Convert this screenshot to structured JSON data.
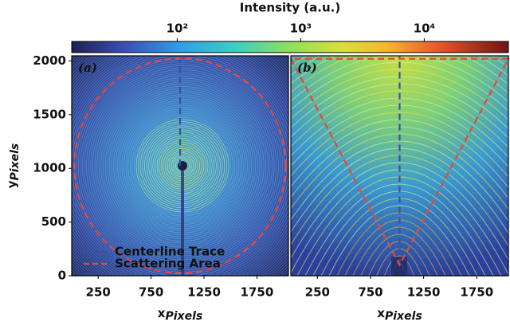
{
  "chart_data": [
    {
      "type": "image",
      "panel_label": "(a)",
      "xlabel": "x",
      "xlabel_sub": "Pixels",
      "ylabel": "y",
      "ylabel_sub": "Pixels",
      "xlim": [
        0,
        2048
      ],
      "ylim": [
        0,
        2048
      ],
      "xticks": [
        250,
        750,
        1250,
        1750
      ],
      "yticks": [
        0,
        500,
        1000,
        1500,
        2000
      ],
      "legend": "lower center",
      "overlays": [
        {
          "name": "Centerline Trace",
          "color": "#3b4fa0",
          "shape": "line",
          "x": [
            1024,
            1024
          ],
          "y": [
            1024,
            2048
          ]
        },
        {
          "name": "Scattering Area",
          "color": "#e8473a",
          "shape": "circle",
          "center": [
            1024,
            1024
          ],
          "radius": 1000
        }
      ]
    },
    {
      "type": "image",
      "panel_label": "(b)",
      "xlabel": "x",
      "xlabel_sub": "Pixels",
      "xlim": [
        0,
        2048
      ],
      "ylim": [
        0,
        2048
      ],
      "xticks": [
        250,
        750,
        1250,
        1750
      ],
      "overlays": [
        {
          "color": "#3b4fa0",
          "shape": "line",
          "x": [
            1024,
            1024
          ],
          "y": [
            100,
            2048
          ]
        },
        {
          "color": "#e8473a",
          "shape": "line",
          "x": [
            0,
            1024,
            2048,
            0
          ],
          "y": [
            2020,
            100,
            2020,
            2020
          ]
        }
      ]
    }
  ],
  "colorbar": {
    "title": "Intensity (a.u.)",
    "scale": "log",
    "lim": [
      14,
      48000
    ],
    "ticks": [
      {
        "value": 100,
        "label": "10²"
      },
      {
        "value": 1000,
        "label": "10³"
      },
      {
        "value": 10000,
        "label": "10⁴"
      }
    ]
  }
}
